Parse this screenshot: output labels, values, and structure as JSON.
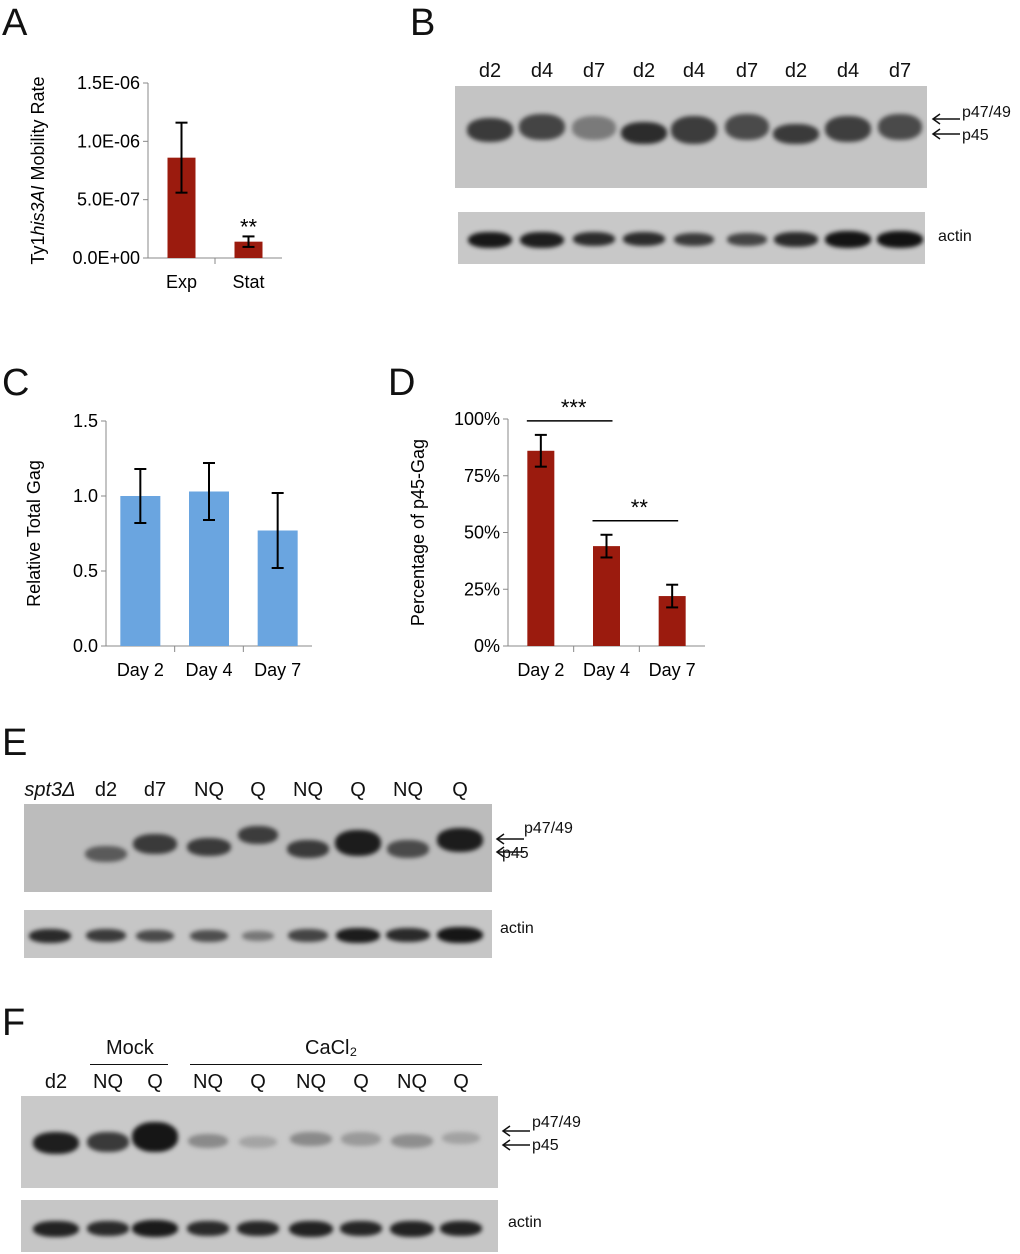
{
  "panels": {
    "A": {
      "letter": "A"
    },
    "B": {
      "letter": "B",
      "lanes": [
        "d2",
        "d4",
        "d7",
        "d2",
        "d4",
        "d7",
        "d2",
        "d4",
        "d7"
      ],
      "label_upper": "p47/49",
      "label_lower": "p45",
      "label_actin": "actin"
    },
    "C": {
      "letter": "C"
    },
    "D": {
      "letter": "D"
    },
    "E": {
      "letter": "E",
      "lanes": [
        "spt3Δ",
        "d2",
        "d7",
        "NQ",
        "Q",
        "NQ",
        "Q",
        "NQ",
        "Q"
      ],
      "label_upper": "p47/49",
      "label_lower": "p45",
      "label_actin": "actin"
    },
    "F": {
      "letter": "F",
      "group_mock": "Mock",
      "group_cacl2": "CaCl₂",
      "lanes": [
        "d2",
        "NQ",
        "Q",
        "NQ",
        "Q",
        "NQ",
        "Q",
        "NQ",
        "Q"
      ],
      "label_upper": "p47/49",
      "label_lower": "p45",
      "label_actin": "actin"
    }
  },
  "chart_data": [
    {
      "panel": "A",
      "type": "bar",
      "categories": [
        "Exp",
        "Stat"
      ],
      "values": [
        8.6e-07,
        1.4e-07
      ],
      "errors": [
        3e-07,
        4.5e-08
      ],
      "ylabel_prefix": "Ty1",
      "ylabel_italic": "his3AI",
      "ylabel_suffix": " Mobility Rate",
      "ylim": [
        0,
        1.5e-06
      ],
      "yticks": [
        "0.0E+00",
        "5.0E-07",
        "1.0E-06",
        "1.5E-06"
      ],
      "annotations": [
        {
          "category": "Stat",
          "text": "**"
        }
      ],
      "color": "#9b1b0e"
    },
    {
      "panel": "C",
      "type": "bar",
      "categories": [
        "Day 2",
        "Day 4",
        "Day 7"
      ],
      "values": [
        1.0,
        1.03,
        0.77
      ],
      "errors": [
        0.18,
        0.19,
        0.25
      ],
      "ylabel": "Relative Total Gag",
      "ylim": [
        0,
        1.5
      ],
      "yticks": [
        "0.0",
        "0.5",
        "1.0",
        "1.5"
      ],
      "color": "#6aa5e0"
    },
    {
      "panel": "D",
      "type": "bar",
      "categories": [
        "Day 2",
        "Day 4",
        "Day 7"
      ],
      "values": [
        86,
        44,
        22
      ],
      "errors": [
        7,
        5,
        5
      ],
      "ylabel": "Percentage of p45-Gag",
      "ylim": [
        0,
        100
      ],
      "yticks": [
        "0%",
        "25%",
        "50%",
        "75%",
        "100%"
      ],
      "significance": [
        {
          "from": "Day 2",
          "to": "Day 4",
          "text": "***"
        },
        {
          "from": "Day 4",
          "to": "Day 7",
          "text": "**"
        }
      ],
      "color": "#9b1b0e"
    }
  ]
}
